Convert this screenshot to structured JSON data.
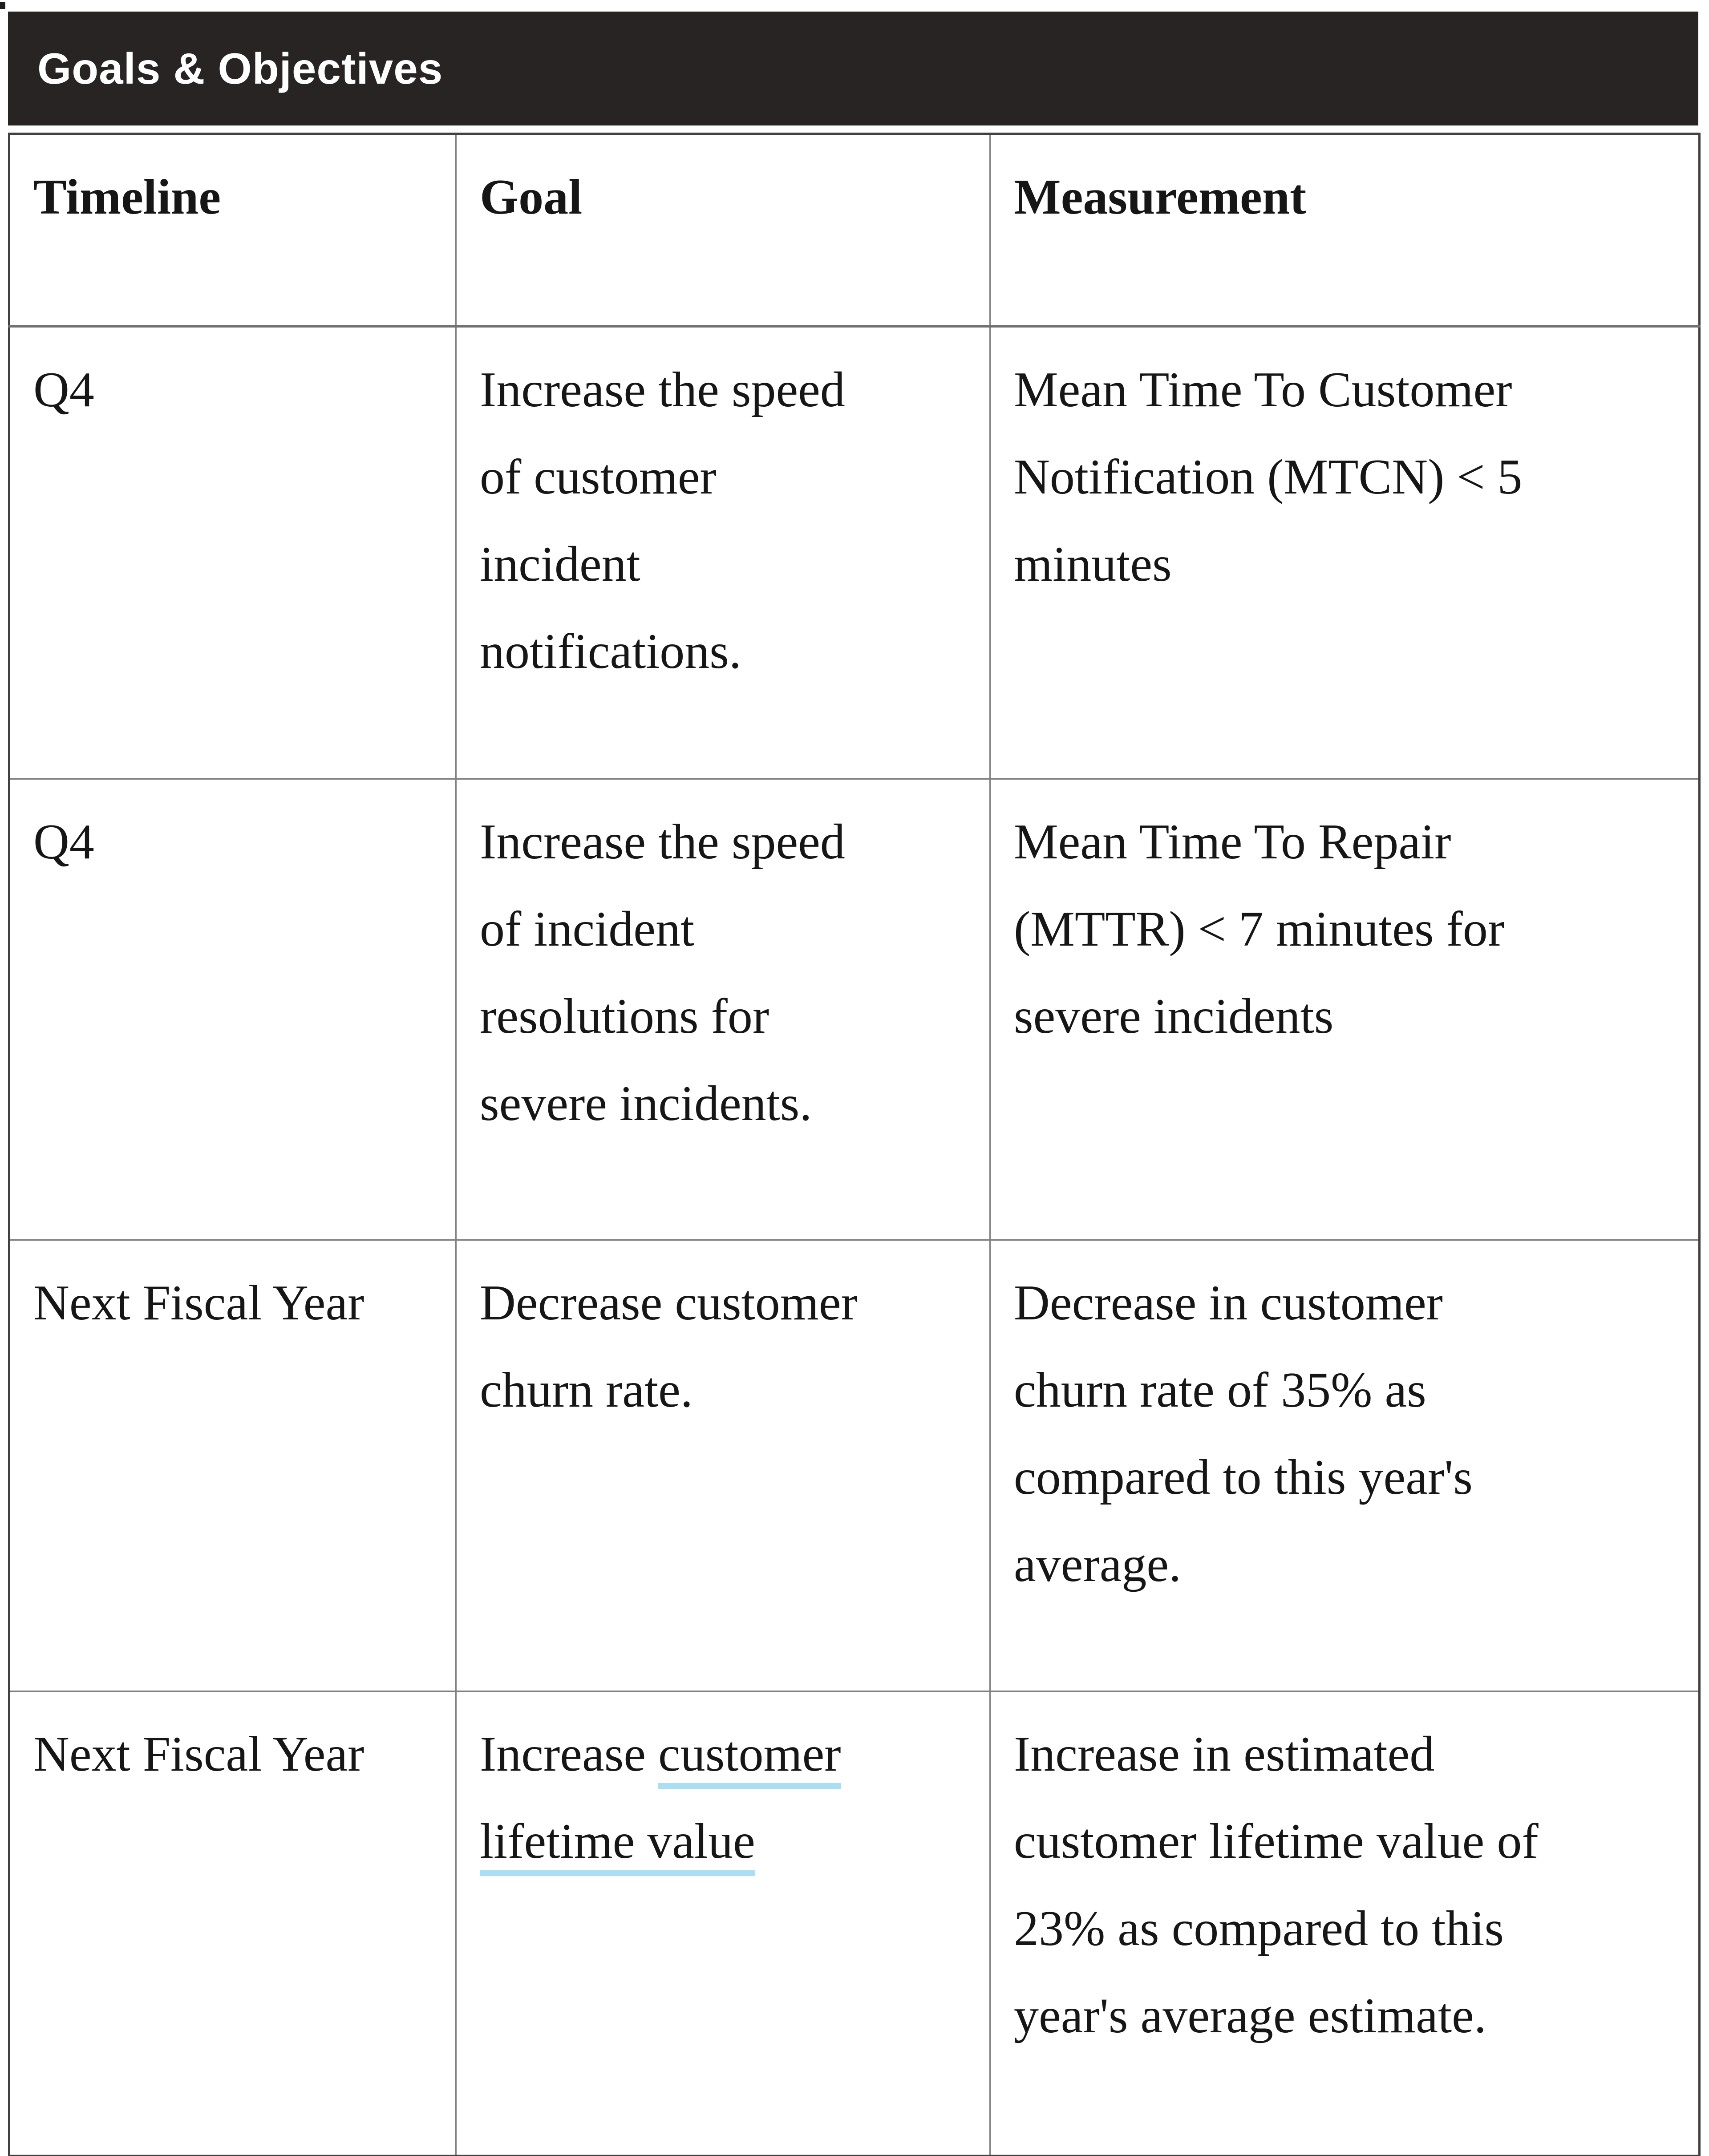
{
  "header_bar": {
    "title": "Goals & Objectives"
  },
  "table": {
    "column_headers": {
      "timeline": "Timeline",
      "goal": "Goal",
      "measurement": "Measurement"
    },
    "rows": [
      {
        "timeline": "Q4",
        "goal": "Increase the speed\nof customer\nincident\nnotifications.",
        "measurement": "Mean Time To Customer\nNotification (MTCN) < 5\nminutes"
      },
      {
        "timeline": "Q4",
        "goal": "Increase the speed\nof incident\nresolutions for\nsevere incidents.",
        "measurement": "Mean Time To Repair\n(MTTR) < 7 minutes for\nsevere incidents"
      },
      {
        "timeline": "Next Fiscal Year",
        "goal": "Decrease customer\nchurn rate.",
        "measurement": "Decrease in customer\nchurn rate of 35% as\ncompared to this year's\naverage."
      },
      {
        "timeline": "Next Fiscal Year",
        "goal_prefix": "Increase ",
        "goal_link": "customer\nlifetime value",
        "measurement": "Increase in estimated\ncustomer lifetime value of\n23% as compared to this\nyear's average estimate."
      }
    ]
  },
  "colors": {
    "title_bar_bg": "#292424",
    "title_text": "#ffffff",
    "link_underline": "#a9def4",
    "border_inner": "#7f7f7f",
    "border_outer": "#414141",
    "body_text": "#161616"
  }
}
